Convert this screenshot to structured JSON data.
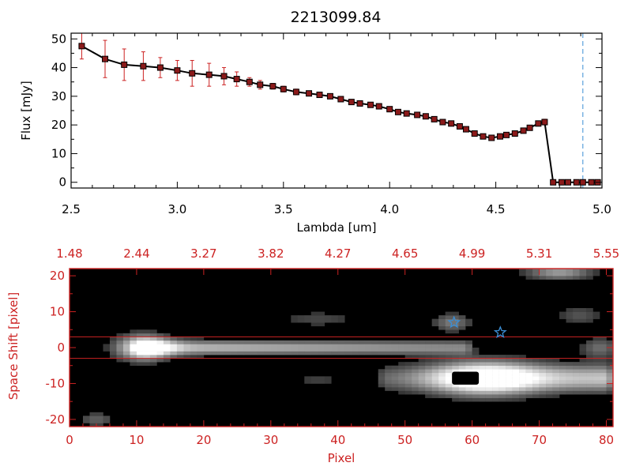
{
  "colors": {
    "axis_black": "#000000",
    "axis_red": "#cc2222",
    "errorbar": "#cc2222",
    "marker_fill": "#8b1a1a",
    "line": "#000000",
    "dashed_line": "#3b8fd6",
    "star": "#3b8fd6",
    "band_line": "#cc2222"
  },
  "chart_data": [
    {
      "type": "line",
      "title": "2213099.84",
      "xlabel": "Lambda [um]",
      "ylabel": "Flux [mJy]",
      "xlim": [
        2.5,
        5.0
      ],
      "ylim": [
        -2,
        52
      ],
      "xticks": [
        "2.5",
        "3.0",
        "3.5",
        "4.0",
        "4.5",
        "5.0"
      ],
      "yticks": [
        "0",
        "10",
        "20",
        "30",
        "40",
        "50"
      ],
      "grid": false,
      "vline_x": 4.91,
      "series": [
        {
          "x": [
            2.55,
            2.66,
            2.75,
            2.84,
            2.92,
            3.0,
            3.07,
            3.15,
            3.22,
            3.28,
            3.34,
            3.39,
            3.45,
            3.5,
            3.56,
            3.62,
            3.67,
            3.72,
            3.77,
            3.82,
            3.86,
            3.91,
            3.95,
            4.0,
            4.04,
            4.08,
            4.13,
            4.17,
            4.21,
            4.25,
            4.29,
            4.33,
            4.36,
            4.4,
            4.44,
            4.48,
            4.52,
            4.55,
            4.59,
            4.63,
            4.66,
            4.7,
            4.73,
            4.77,
            4.81,
            4.84,
            4.88,
            4.91,
            4.95,
            4.98
          ],
          "y": [
            47.5,
            43,
            41,
            40.5,
            40,
            39,
            38,
            37.5,
            37,
            36,
            35,
            34,
            33.5,
            32.5,
            31.5,
            31,
            30.5,
            30,
            29,
            28,
            27.5,
            27,
            26.5,
            25.5,
            24.5,
            24,
            23.5,
            23,
            22,
            21,
            20.5,
            19.5,
            18.5,
            17,
            16,
            15.5,
            16,
            16.5,
            17,
            18,
            19,
            20.5,
            21,
            0,
            0,
            0,
            0,
            0,
            0,
            0
          ],
          "err": [
            4.5,
            6.5,
            5.5,
            5,
            3.5,
            3.5,
            4.5,
            4,
            3,
            2.5,
            1.5,
            1.5,
            1,
            1,
            1,
            0.8,
            0.8,
            0.8,
            0.8,
            0.8,
            0.8,
            0.8,
            0.8,
            0.8,
            0.8,
            0.8,
            0.8,
            0.8,
            0.8,
            0.8,
            0.8,
            0.8,
            0.8,
            0.8,
            0.8,
            0.8,
            0.8,
            0.8,
            0.8,
            0.8,
            0.8,
            0.8,
            1,
            0.8,
            0.8,
            0.8,
            0.8,
            0.8,
            0.8,
            0.8
          ]
        }
      ]
    },
    {
      "type": "heatmap",
      "xlabel": "Pixel",
      "ylabel": "Space Shift [pixel]",
      "xlim": [
        0,
        81
      ],
      "ylim": [
        -22,
        22
      ],
      "xticks": [
        "0",
        "10",
        "20",
        "30",
        "40",
        "50",
        "60",
        "70",
        "80"
      ],
      "yticks": [
        "-20",
        "-10",
        "0",
        "10",
        "20"
      ],
      "top_ticks": [
        "1.48",
        "2.44",
        "3.27",
        "3.82",
        "4.27",
        "4.65",
        "4.99",
        "5.31",
        "5.55"
      ],
      "band_lines_y": [
        3,
        -3
      ],
      "stars": [
        {
          "x": 57.3,
          "y": 7.0
        },
        {
          "x": 64.2,
          "y": 4.2
        }
      ],
      "sources": [
        {
          "x": 11,
          "y": 0,
          "amp": 1.0,
          "sx": 2.8,
          "sy": 2.4
        },
        {
          "x": 62,
          "y": -8.5,
          "amp": 1.0,
          "sx": 5.5,
          "sy": 3.2
        },
        {
          "x": 73,
          "y": 21,
          "amp": 0.55,
          "sx": 3.5,
          "sy": 1.5
        },
        {
          "x": 57,
          "y": 7,
          "amp": 0.4,
          "sx": 2.0,
          "sy": 1.8
        },
        {
          "x": 79,
          "y": 0,
          "amp": 0.35,
          "sx": 2.0,
          "sy": 2.0
        },
        {
          "x": 4,
          "y": -20,
          "amp": 0.3,
          "sx": 2.0,
          "sy": 1.5
        },
        {
          "x": 37,
          "y": 8,
          "amp": 0.2,
          "sx": 5.0,
          "sy": 1.8
        },
        {
          "x": 37,
          "y": -9,
          "amp": 0.18,
          "sx": 3.0,
          "sy": 1.5
        },
        {
          "x": 76,
          "y": 9,
          "amp": 0.25,
          "sx": 2.5,
          "sy": 2.0
        }
      ],
      "trace": [
        {
          "x0": 10,
          "x1": 60,
          "y": 0,
          "amp0": 0.72,
          "amp1": 0.45,
          "sy": 1.4
        },
        {
          "x0": 46,
          "x1": 81,
          "y": -8.5,
          "amp0": 0.3,
          "amp1": 0.75,
          "sy": 2.6
        }
      ],
      "saturated_blob": {
        "x": 59,
        "y": -8.5
      }
    }
  ]
}
